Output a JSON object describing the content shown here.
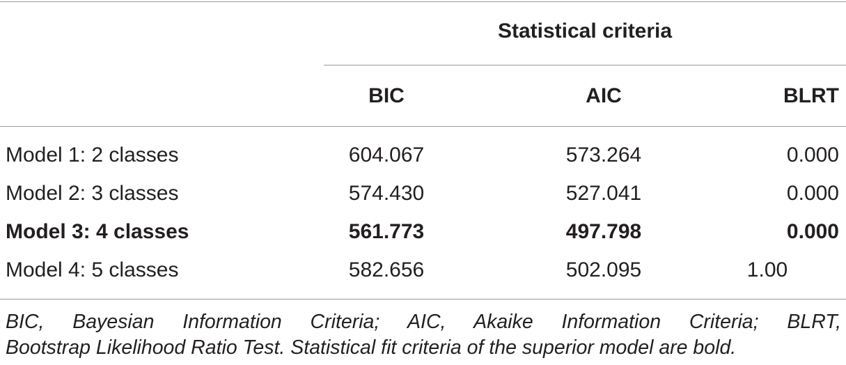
{
  "table": {
    "group_header": "Statistical criteria",
    "columns": [
      "",
      "BIC",
      "AIC",
      "BLRT"
    ],
    "rows": [
      {
        "label": "Model 1: 2 classes",
        "bic": "604.067",
        "aic": "573.264",
        "blrt": "0.000",
        "bold": false
      },
      {
        "label": "Model 2: 3 classes",
        "bic": "574.430",
        "aic": "527.041",
        "blrt": "0.000",
        "bold": false
      },
      {
        "label": "Model 3: 4 classes",
        "bic": "561.773",
        "aic": "497.798",
        "blrt": "0.000",
        "bold": true
      },
      {
        "label": "Model 4: 5 classes",
        "bic": "582.656",
        "aic": "502.095",
        "blrt": "1.00",
        "bold": false
      }
    ]
  },
  "footnote": {
    "line1": "BIC, Bayesian Information Criteria; AIC, Akaike Information Criteria; BLRT,",
    "line2": "Bootstrap Likelihood Ratio Test. Statistical fit criteria of the superior model are bold."
  },
  "colors": {
    "text": "#231f20",
    "rule": "#9a9a9a"
  }
}
